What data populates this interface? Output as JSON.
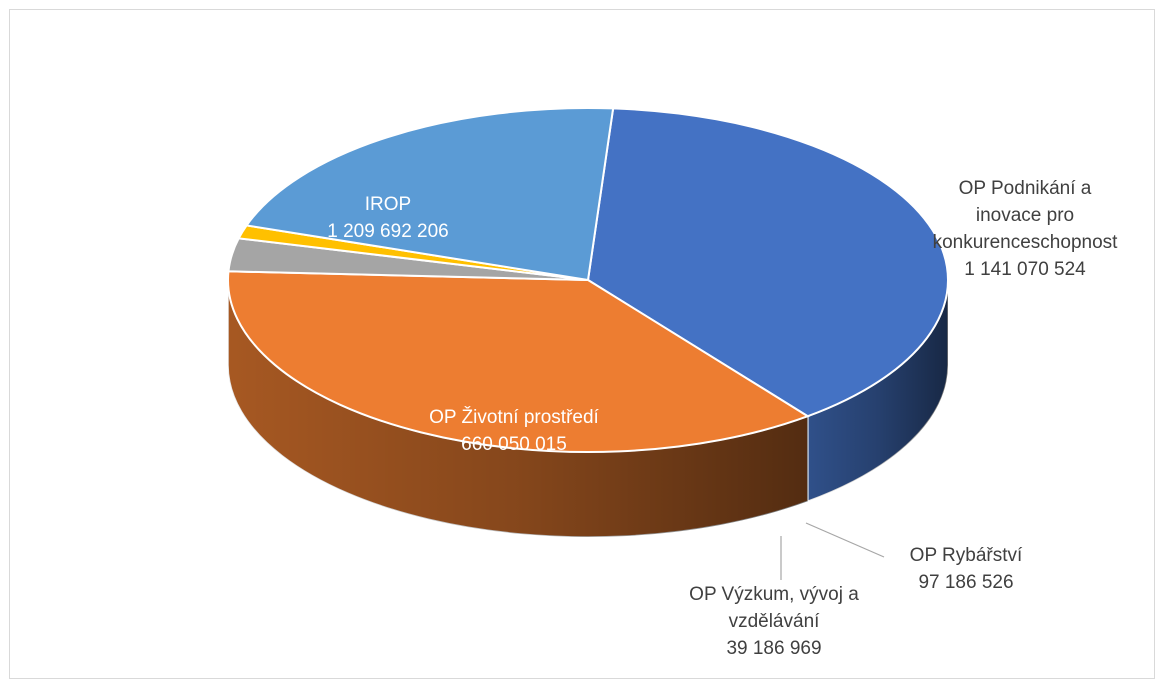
{
  "chart_data": {
    "type": "pie",
    "style": "3d",
    "title": "",
    "slices": [
      {
        "name": "IROP",
        "value": 1209692206,
        "value_label": "1 209 692 206",
        "color": "#4472c4",
        "label_color": "#ffffff"
      },
      {
        "name": "OP Podnikání a inovace pro konkurenceschopnost",
        "lines": [
          "OP Podnikání a",
          "inovace pro",
          "konkurenceschopnost"
        ],
        "value": 1141070524,
        "value_label": "1 141 070 524",
        "color": "#ed7d31",
        "label_color": "#404040"
      },
      {
        "name": "OP Rybářství",
        "value": 97186526,
        "value_label": "97 186 526",
        "color": "#a5a5a5",
        "label_color": "#404040"
      },
      {
        "name": "OP Výzkum, vývoj a vzdělávání",
        "lines": [
          "OP Výzkum, vývoj a",
          "vzdělávání"
        ],
        "value": 39186969,
        "value_label": "39 186 969",
        "color": "#ffc000",
        "label_color": "#404040"
      },
      {
        "name": "OP Životní prostředí",
        "value": 660050015,
        "value_label": "660 050 015",
        "color": "#5b9bd5",
        "label_color": "#ffffff"
      }
    ],
    "legend": "none",
    "data_labels": "category-and-value"
  }
}
